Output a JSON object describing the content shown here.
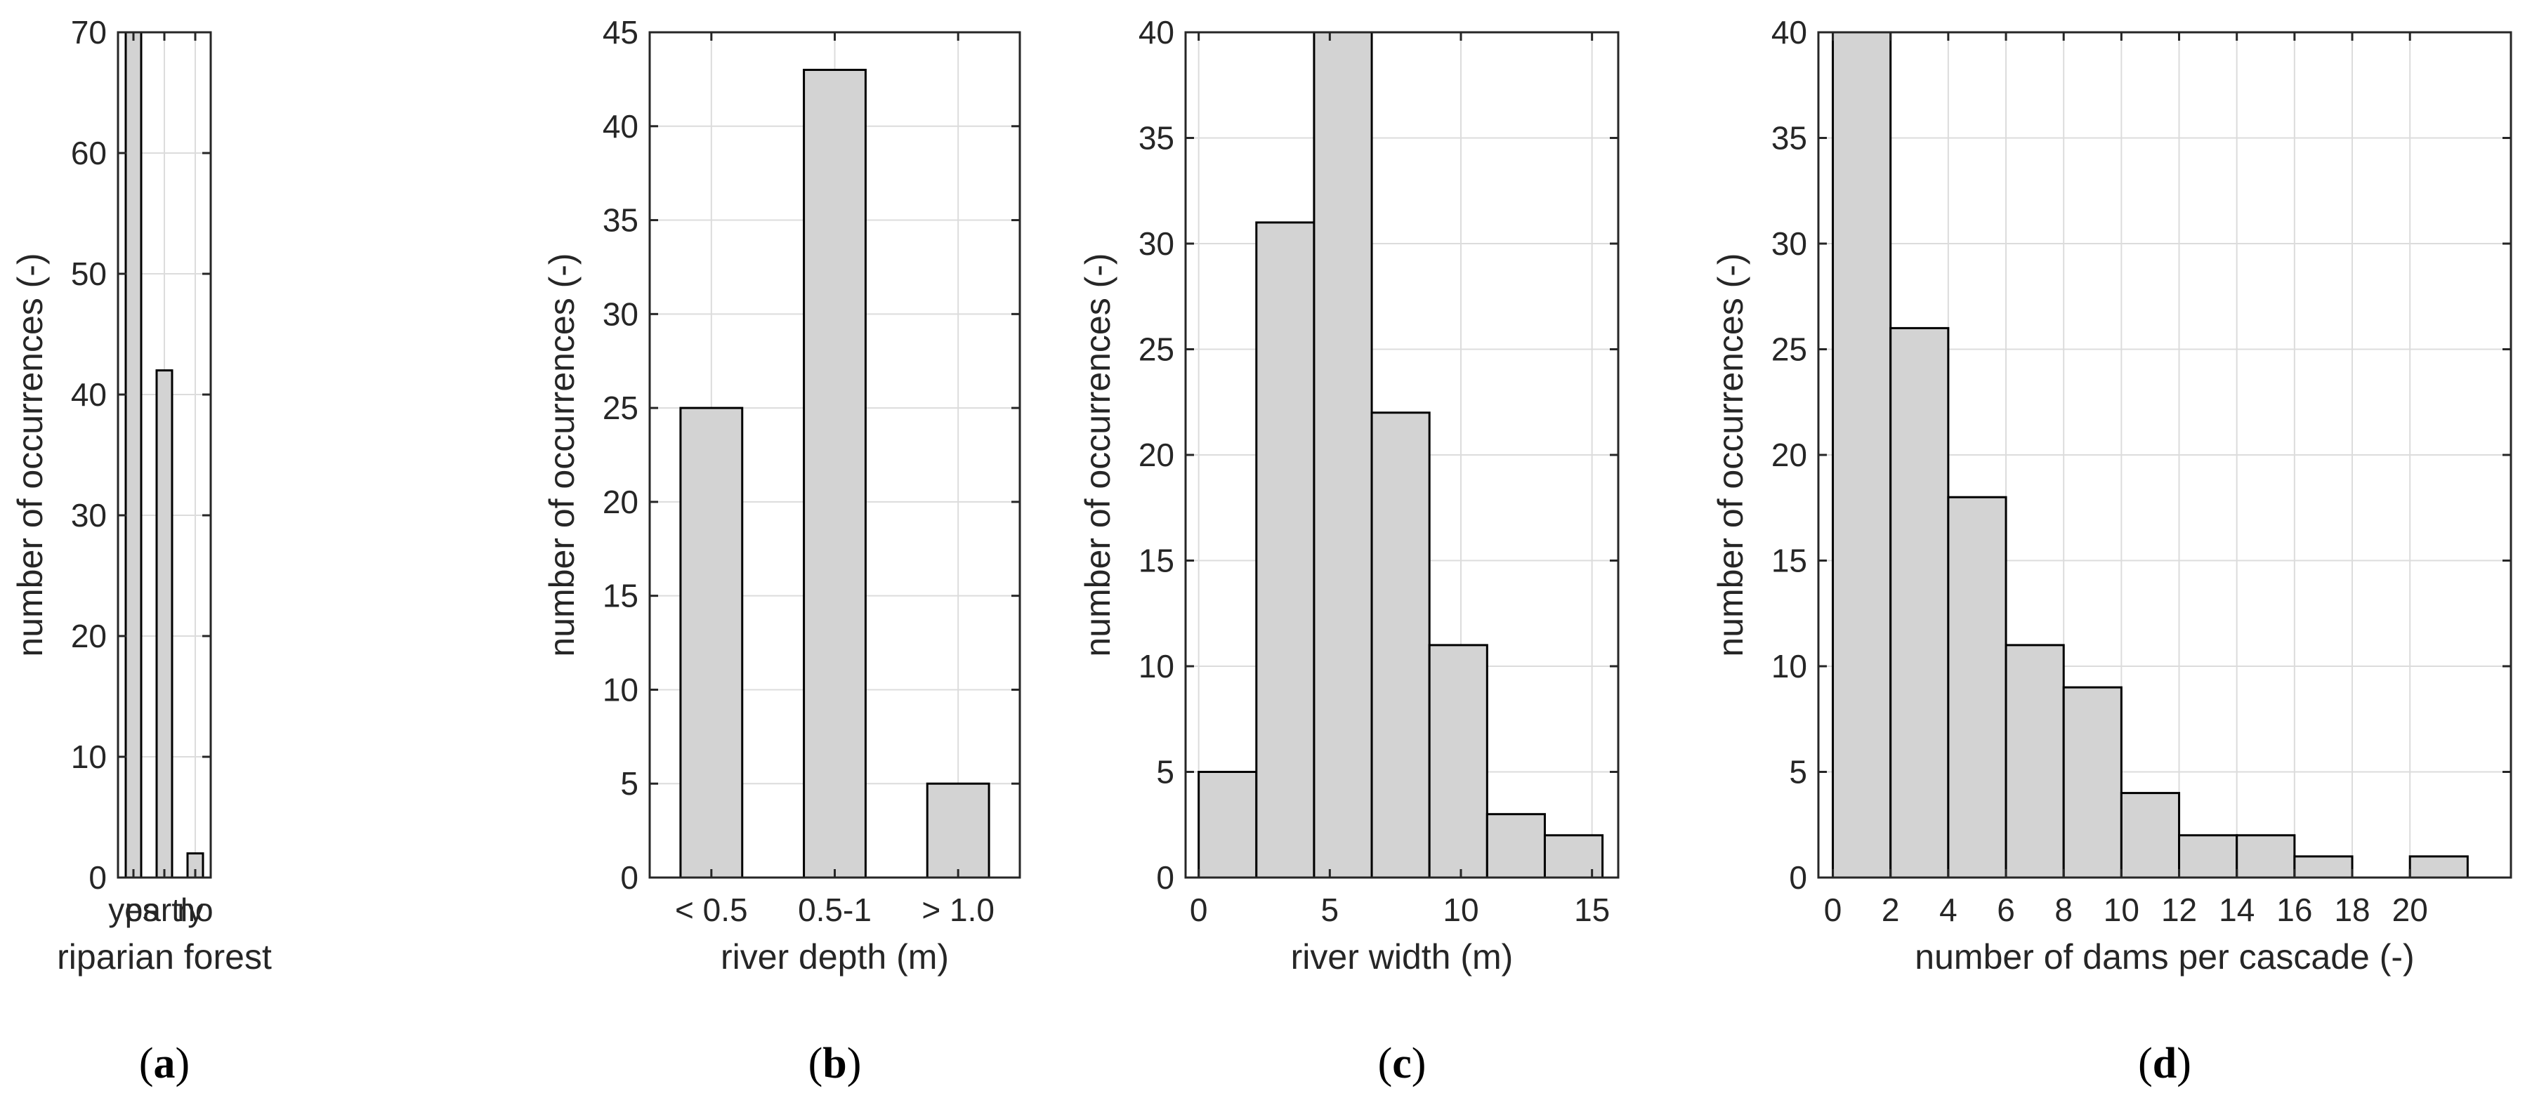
{
  "chart_data": [
    {
      "type": "bar",
      "panel_label": "a",
      "categories": [
        "yes",
        "partly",
        "no"
      ],
      "values": [
        70,
        42,
        2
      ],
      "xlabel": "riparian forest",
      "ylabel": "number of occurrences (-)",
      "ylim": [
        0,
        70
      ],
      "yticks": [
        0,
        10,
        20,
        30,
        40,
        50,
        60,
        70
      ],
      "grid": true
    },
    {
      "type": "bar",
      "panel_label": "b",
      "categories": [
        "< 0.5",
        "0.5-1",
        "> 1.0"
      ],
      "values": [
        25,
        43,
        5
      ],
      "xlabel": "river depth (m)",
      "ylabel": "number of occurrences (-)",
      "ylim": [
        0,
        45
      ],
      "yticks": [
        0,
        5,
        10,
        15,
        20,
        25,
        30,
        35,
        40,
        45
      ],
      "grid": true
    },
    {
      "type": "histogram",
      "panel_label": "c",
      "bin_edges": [
        0,
        2.2,
        4.4,
        6.6,
        8.8,
        11.0,
        13.2,
        15.4
      ],
      "values": [
        5,
        31,
        40,
        22,
        11,
        3,
        2
      ],
      "xlabel": "river width (m)",
      "ylabel": "number of occurrences (-)",
      "xlim": [
        -0.5,
        16
      ],
      "ylim": [
        0,
        40
      ],
      "xticks": [
        0,
        5,
        10,
        15
      ],
      "yticks": [
        0,
        5,
        10,
        15,
        20,
        25,
        30,
        35,
        40
      ],
      "grid": true
    },
    {
      "type": "histogram",
      "panel_label": "d",
      "bin_edges": [
        0,
        2,
        4,
        6,
        8,
        10,
        12,
        14,
        16,
        18,
        20,
        22
      ],
      "values": [
        40,
        26,
        18,
        11,
        9,
        4,
        2,
        2,
        1,
        0,
        1
      ],
      "xlabel": "number of dams per cascade (-)",
      "ylabel": "number of occurrences (-)",
      "xlim": [
        -0.5,
        23.5
      ],
      "ylim": [
        0,
        40
      ],
      "xticks": [
        0,
        2,
        4,
        6,
        8,
        10,
        12,
        14,
        16,
        18,
        20
      ],
      "yticks": [
        0,
        5,
        10,
        15,
        20,
        25,
        30,
        35,
        40
      ],
      "grid": true
    }
  ]
}
